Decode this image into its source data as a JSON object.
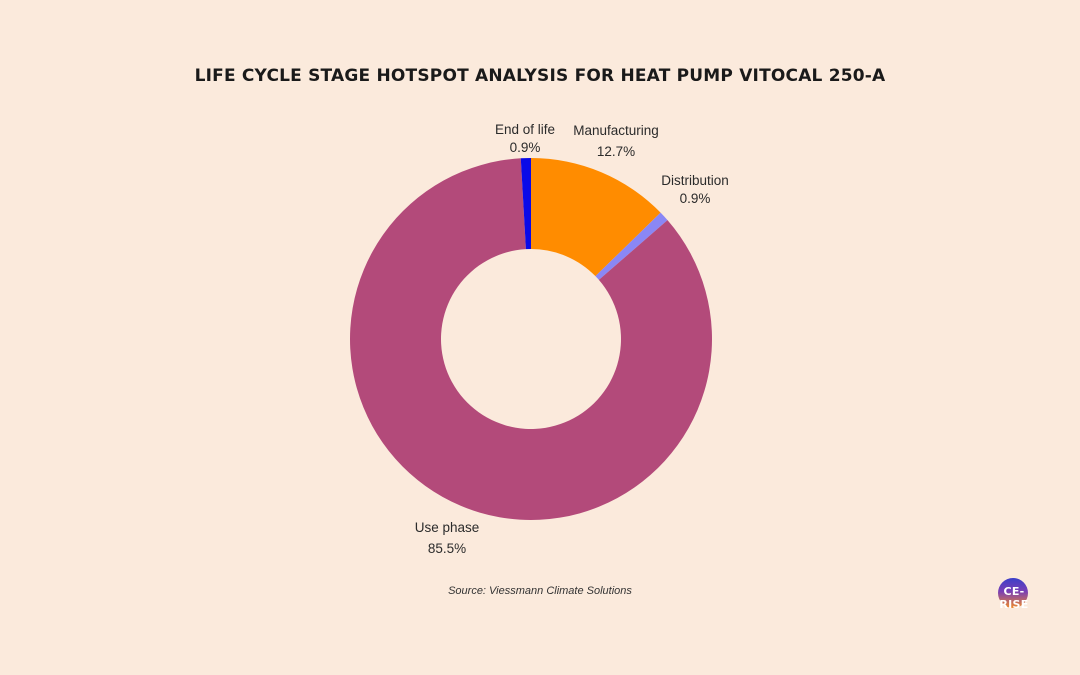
{
  "title": "LIFE CYCLE STAGE HOTSPOT ANALYSIS FOR HEAT PUMP VITOCAL 250-A",
  "source": "Source: Viessmann Climate Solutions",
  "logo": {
    "text": "CE-RISE"
  },
  "colors": {
    "background": "#fbeadc",
    "manufacturing": "#ff8c00",
    "distribution": "#8a87f5",
    "use_phase": "#b34a7a",
    "end_of_life": "#0a0ae8"
  },
  "labels": {
    "end_of_life": {
      "name": "End of life",
      "value": "0.9%"
    },
    "manufacturing": {
      "name": "Manufacturing",
      "value": "12.7%"
    },
    "distribution": {
      "name": "Distribution",
      "value": "0.9%"
    },
    "use_phase": {
      "name": "Use phase",
      "value": "85.5%"
    }
  },
  "chart_data": {
    "type": "pie",
    "subtype": "donut",
    "title": "LIFE CYCLE STAGE HOTSPOT ANALYSIS FOR HEAT PUMP VITOCAL 250-A",
    "categories": [
      "Manufacturing",
      "Distribution",
      "Use phase",
      "End of life"
    ],
    "values": [
      12.7,
      0.9,
      85.5,
      0.9
    ],
    "unit": "%",
    "colors": [
      "#ff8c00",
      "#8a87f5",
      "#b34a7a",
      "#0a0ae8"
    ],
    "start_angle": "12 o'clock",
    "direction": "clockwise",
    "legend": "none (direct labels)",
    "annotation": "Source: Viessmann Climate Solutions"
  }
}
